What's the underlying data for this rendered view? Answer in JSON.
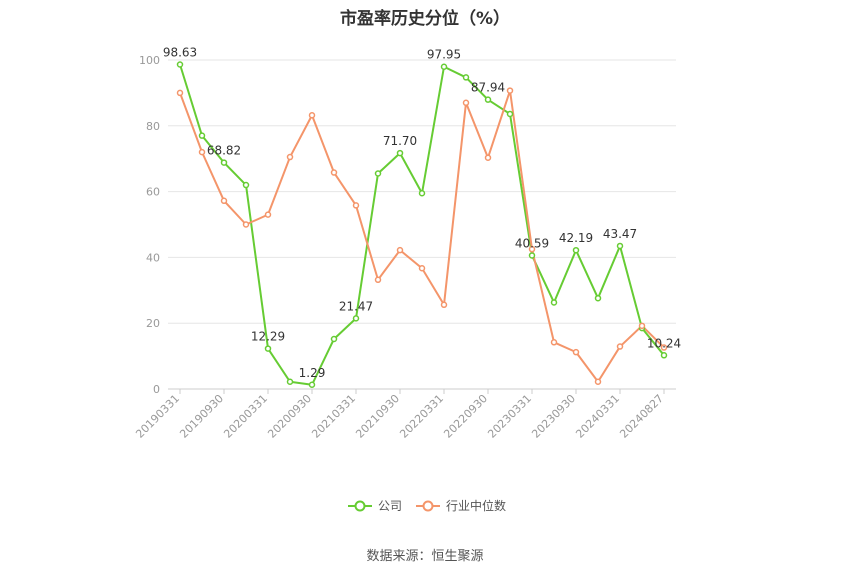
{
  "chart_data": {
    "type": "line",
    "title": "市盈率历史分位（%）",
    "source": "数据来源：恒生聚源",
    "ylim": [
      0,
      100
    ],
    "yticks": [
      0,
      20,
      40,
      60,
      80,
      100
    ],
    "x": [
      "20190331",
      "20190630",
      "20190930",
      "20191231",
      "20200331",
      "20200630",
      "20200930",
      "20201231",
      "20210331",
      "20210630",
      "20210930",
      "20211231",
      "20220331",
      "20220630",
      "20220930",
      "20221231",
      "20230331",
      "20230630",
      "20230930",
      "20231231",
      "20240331",
      "20240630",
      "20240827"
    ],
    "xtick_labels": [
      "20190331",
      "20190930",
      "20200331",
      "20200930",
      "20210331",
      "20210930",
      "20220331",
      "20220930",
      "20230331",
      "20230930",
      "20240331",
      "20240827"
    ],
    "xtick_indices": [
      0,
      2,
      4,
      6,
      8,
      10,
      12,
      14,
      16,
      18,
      20,
      22
    ],
    "grid": true,
    "legend_position": "bottom",
    "series": [
      {
        "name": "公司",
        "color": "#66cc33",
        "values": [
          98.63,
          77.0,
          68.82,
          62.0,
          12.29,
          2.2,
          1.29,
          15.2,
          21.47,
          65.5,
          71.7,
          59.5,
          97.95,
          94.7,
          87.94,
          83.6,
          40.59,
          26.3,
          42.19,
          27.6,
          43.47,
          18.5,
          10.24
        ],
        "labels": [
          "98.63",
          "",
          "68.82",
          "",
          "12.29",
          "",
          "1.29",
          "",
          "21.47",
          "",
          "71.70",
          "",
          "97.95",
          "",
          "87.94",
          "",
          "40.59",
          "",
          "42.19",
          "",
          "43.47",
          "",
          "10.24"
        ]
      },
      {
        "name": "行业中位数",
        "color": "#f4956a",
        "values": [
          90.0,
          72.0,
          57.2,
          50.0,
          53.0,
          70.5,
          83.2,
          65.8,
          55.8,
          33.2,
          42.2,
          36.7,
          25.6,
          87.0,
          70.3,
          90.7,
          42.5,
          14.2,
          11.2,
          2.2,
          12.9,
          19.2,
          12.6
        ]
      }
    ]
  }
}
